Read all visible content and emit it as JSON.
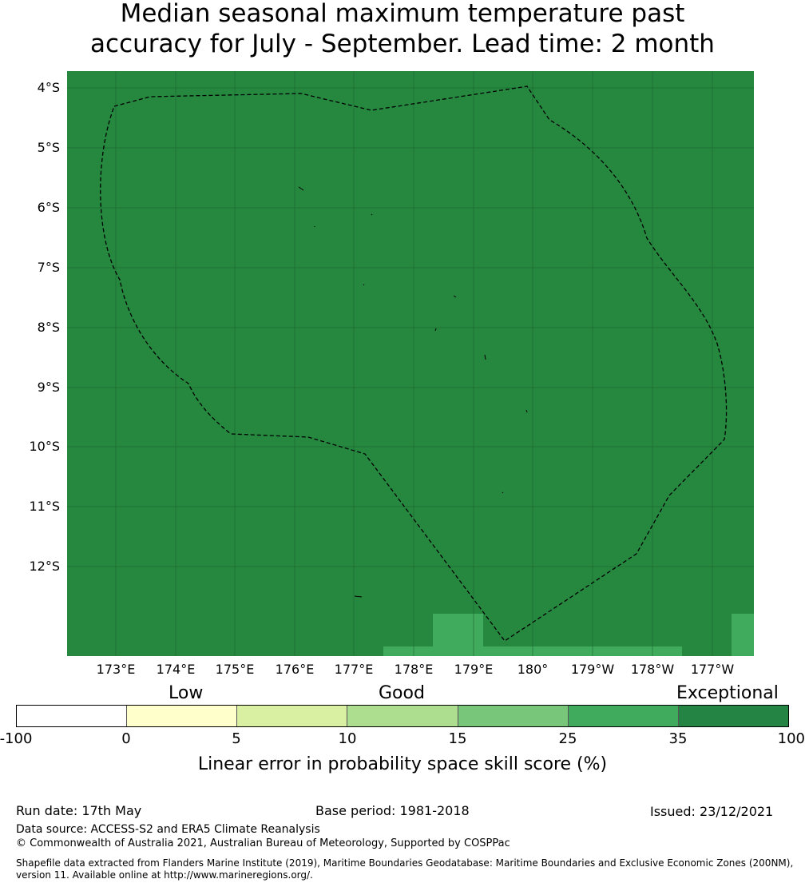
{
  "title": {
    "line1": "Median seasonal maximum temperature past",
    "line2": "accuracy for July - September. Lead time: 2 month"
  },
  "map": {
    "background_color": "#26883f",
    "lat_labels": [
      "4°S",
      "5°S",
      "6°S",
      "7°S",
      "8°S",
      "9°S",
      "10°S",
      "11°S",
      "12°S"
    ],
    "lon_labels": [
      "173°E",
      "174°E",
      "175°E",
      "176°E",
      "177°E",
      "178°E",
      "179°E",
      "180°",
      "179°W",
      "178°W",
      "177°W"
    ],
    "boundary_style": "dashed"
  },
  "legend": {
    "categories": [
      "Low",
      "Good",
      "Exceptional"
    ],
    "ticks": [
      "-100",
      "0",
      "5",
      "10",
      "15",
      "25",
      "35",
      "100"
    ],
    "colors": [
      "#ffffff",
      "#ffffcc",
      "#d9f0a3",
      "#addd8e",
      "#78c679",
      "#41ab5d",
      "#238443"
    ],
    "label": "Linear error in probability space skill score (%)"
  },
  "footer": {
    "run_date": "Run date: 17th May",
    "base_period": "Base period: 1981-2018",
    "issued": "Issued: 23/12/2021",
    "data_source": "Data source: ACCESS-S2 and ERA5 Climate Reanalysis",
    "copyright": "© Commonwealth of Australia 2021, Australian Bureau of Meteorology, Supported by COSPPac",
    "shapefile_line1": "Shapefile data extracted from Flanders Marine Institute (2019), Maritime Boundaries Geodatabase: Maritime Boundaries and Exclusive Economic Zones (200NM),",
    "shapefile_line2": "version 11. Available online at http://www.marineregions.org/."
  }
}
